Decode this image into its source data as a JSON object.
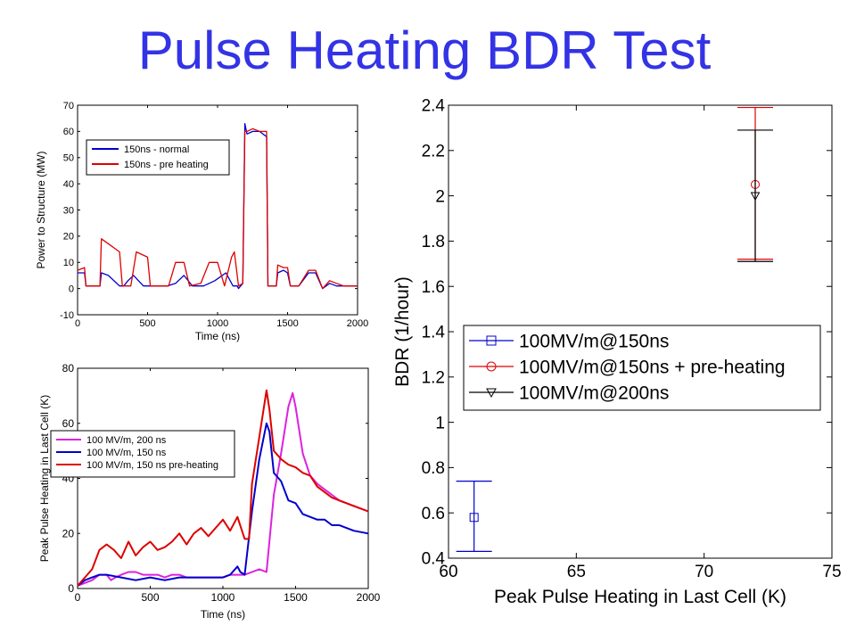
{
  "slide": {
    "title": "Pulse Heating BDR Test"
  },
  "colors": {
    "title": "#3333e6",
    "blue": "#0000cc",
    "red": "#dd0000",
    "magenta": "#dd22dd",
    "black": "#000000"
  },
  "chart_data": [
    {
      "type": "line",
      "xlabel": "Time (ns)",
      "ylabel": "Power to Structure (MW)",
      "xlim": [
        0,
        2000
      ],
      "ylim": [
        -10,
        70
      ],
      "xticks": [
        "0",
        "500",
        "1000",
        "1500",
        "2000"
      ],
      "yticks": [
        "-10",
        "0",
        "10",
        "20",
        "30",
        "40",
        "50",
        "60",
        "70"
      ],
      "grid": false,
      "legend": "upper-left",
      "series": [
        {
          "name": "150ns - normal",
          "color": "#0000cc",
          "x": [
            0,
            50,
            60,
            160,
            170,
            220,
            300,
            330,
            360,
            400,
            470,
            520,
            570,
            640,
            700,
            760,
            820,
            900,
            940,
            980,
            1060,
            1110,
            1140,
            1150,
            1180,
            1195,
            1210,
            1250,
            1300,
            1350,
            1360,
            1380,
            1420,
            1430,
            1470,
            1500,
            1520,
            1580,
            1650,
            1700,
            1750,
            1800,
            1850,
            1900,
            1950,
            2000
          ],
          "y": [
            6,
            6,
            1,
            1,
            6,
            5,
            1,
            1,
            3,
            5,
            1,
            1,
            1,
            1,
            2,
            5,
            1,
            1,
            2,
            3,
            6,
            1,
            1,
            0,
            2,
            63,
            59,
            60,
            60,
            58,
            1,
            1,
            1,
            6,
            7,
            6,
            1,
            1,
            6,
            6,
            0,
            2,
            1,
            1,
            1,
            1
          ]
        },
        {
          "name": "150ns - pre heating",
          "color": "#dd0000",
          "x": [
            0,
            50,
            60,
            160,
            170,
            300,
            320,
            380,
            420,
            500,
            520,
            560,
            570,
            650,
            700,
            760,
            800,
            880,
            940,
            1000,
            1050,
            1100,
            1120,
            1150,
            1180,
            1195,
            1210,
            1250,
            1300,
            1350,
            1360,
            1380,
            1420,
            1430,
            1470,
            1500,
            1520,
            1580,
            1650,
            1700,
            1750,
            1800,
            1850,
            1900,
            1950,
            2000
          ],
          "y": [
            7,
            8,
            1,
            1,
            19,
            14,
            1,
            1,
            14,
            12,
            1,
            1,
            1,
            1,
            10,
            10,
            1,
            2,
            10,
            10,
            1,
            12,
            14,
            1,
            2,
            60,
            60,
            61,
            60,
            60,
            1,
            1,
            1,
            9,
            8,
            8,
            1,
            1,
            7,
            7,
            0,
            3,
            2,
            1,
            1,
            1
          ]
        }
      ]
    },
    {
      "type": "line",
      "xlabel": "Time (ns)",
      "ylabel": "Peak Pulse Heating in Last Cell (K)",
      "xlim": [
        0,
        2000
      ],
      "ylim": [
        0,
        80
      ],
      "xticks": [
        "0",
        "500",
        "1000",
        "1500",
        "2000"
      ],
      "yticks": [
        "0",
        "20",
        "40",
        "60",
        "80"
      ],
      "grid": false,
      "legend": "middle-right",
      "series": [
        {
          "name": "100 MV/m, 200 ns",
          "color": "#dd22dd",
          "x": [
            0,
            50,
            100,
            150,
            200,
            230,
            260,
            300,
            350,
            400,
            450,
            500,
            550,
            600,
            650,
            700,
            750,
            800,
            900,
            1000,
            1050,
            1100,
            1150,
            1200,
            1250,
            1300,
            1350,
            1400,
            1450,
            1480,
            1500,
            1550,
            1600,
            1650,
            1700,
            1750,
            1800,
            1900,
            2000
          ],
          "y": [
            1,
            2,
            3,
            5,
            5,
            3,
            4,
            5,
            6,
            6,
            5,
            5,
            5,
            4,
            5,
            5,
            4,
            4,
            4,
            4,
            5,
            5,
            5,
            6,
            7,
            6,
            34,
            49,
            66,
            71,
            66,
            49,
            41,
            38,
            36,
            34,
            32,
            30,
            28
          ]
        },
        {
          "name": "100 MV/m, 150 ns",
          "color": "#0000cc",
          "x": [
            0,
            50,
            100,
            150,
            200,
            300,
            400,
            500,
            600,
            700,
            800,
            900,
            1000,
            1050,
            1100,
            1120,
            1150,
            1200,
            1250,
            1300,
            1320,
            1350,
            1400,
            1450,
            1500,
            1550,
            1600,
            1650,
            1700,
            1750,
            1800,
            1900,
            2000
          ],
          "y": [
            1,
            3,
            4,
            5,
            5,
            4,
            3,
            4,
            3,
            4,
            4,
            4,
            4,
            5,
            8,
            6,
            5,
            28,
            47,
            60,
            57,
            42,
            39,
            32,
            31,
            27,
            26,
            25,
            25,
            23,
            23,
            21,
            20
          ]
        },
        {
          "name": "100 MV/m, 150 ns pre-heating",
          "color": "#dd0000",
          "x": [
            0,
            50,
            100,
            150,
            200,
            250,
            300,
            350,
            400,
            450,
            500,
            550,
            600,
            650,
            700,
            750,
            800,
            850,
            900,
            950,
            1000,
            1050,
            1100,
            1150,
            1180,
            1200,
            1250,
            1300,
            1320,
            1350,
            1400,
            1450,
            1500,
            1550,
            1600,
            1650,
            1700,
            1750,
            1800,
            1900,
            2000
          ],
          "y": [
            1,
            4,
            7,
            14,
            16,
            14,
            11,
            17,
            12,
            15,
            17,
            14,
            15,
            17,
            20,
            16,
            20,
            22,
            19,
            22,
            25,
            21,
            26,
            18,
            18,
            38,
            55,
            72,
            65,
            50,
            47,
            45,
            44,
            42,
            41,
            37,
            35,
            33,
            32,
            30,
            28
          ]
        }
      ]
    },
    {
      "type": "scatter",
      "xlabel": "Peak Pulse Heating in Last Cell (K)",
      "ylabel": "BDR (1/hour)",
      "xlim": [
        60,
        75
      ],
      "ylim": [
        0.4,
        2.4
      ],
      "xticks": [
        "60",
        "65",
        "70",
        "75"
      ],
      "yticks": [
        "0.4",
        "0.6",
        "0.8",
        "1",
        "1.2",
        "1.4",
        "1.6",
        "1.8",
        "2",
        "2.2",
        "2.4"
      ],
      "grid": false,
      "legend": "middle",
      "series": [
        {
          "name": "100MV/m@150ns",
          "color": "#0000cc",
          "marker": "square",
          "x": [
            61.0
          ],
          "y": [
            0.58
          ],
          "err_low": [
            0.43
          ],
          "err_high": [
            0.74
          ]
        },
        {
          "name": "100MV/m@150ns + pre-heating",
          "color": "#dd0000",
          "marker": "circle",
          "x": [
            72.0
          ],
          "y": [
            2.05
          ],
          "err_low": [
            1.72
          ],
          "err_high": [
            2.39
          ]
        },
        {
          "name": "100MV/m@200ns",
          "color": "#000000",
          "marker": "triangle-down",
          "x": [
            72.0
          ],
          "y": [
            2.0
          ],
          "err_low": [
            1.71
          ],
          "err_high": [
            2.29
          ]
        }
      ]
    }
  ]
}
